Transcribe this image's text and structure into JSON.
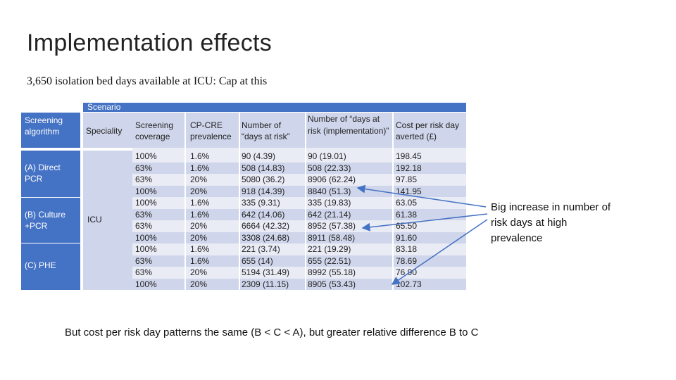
{
  "slide": {
    "title": "Implementation effects",
    "subtitle": "3,650 isolation bed days available at ICU:  Cap at this",
    "note": "Big increase in number of risk days at high prevalence",
    "footer": "But cost per risk day patterns the same (B < C < A), but greater relative difference B to C"
  },
  "table": {
    "scenario_label": "Scenario",
    "headers": {
      "algorithm": "Screening algorithm",
      "speciality": "Speciality",
      "coverage": "Screening coverage",
      "prevalence": "CP-CRE prevalence",
      "risk_days": "Number of “days at risk”",
      "risk_days_impl": "Number of “days at risk (implementation)”",
      "cost": "Cost per risk day averted (£)"
    },
    "groups": [
      "(A) Direct PCR",
      "(B) Culture +PCR",
      "(C) PHE"
    ],
    "speciality_value": "ICU",
    "rows": [
      [
        "100%",
        "1.6%",
        "90 (4.39)",
        "90 (19.01)",
        "198.45"
      ],
      [
        "63%",
        "1.6%",
        "508 (14.83)",
        "508 (22.33)",
        "192.18"
      ],
      [
        "63%",
        "20%",
        "5080 (36.2)",
        "8906 (62.24)",
        "97.85"
      ],
      [
        "100%",
        "20%",
        "918 (14.39)",
        "8840 (51.3)",
        "141.95"
      ],
      [
        "100%",
        "1.6%",
        "335 (9.31)",
        "335 (19.83)",
        "63.05"
      ],
      [
        "63%",
        "1.6%",
        "642 (14.06)",
        "642 (21.14)",
        "61.38"
      ],
      [
        "63%",
        "20%",
        "6664 (42.32)",
        "8952 (57.38)",
        "65.50"
      ],
      [
        "100%",
        "20%",
        "3308 (24.68)",
        "8911 (58.48)",
        "91.60"
      ],
      [
        "100%",
        "1.6%",
        "221 (3.74)",
        "221 (19.29)",
        "83.18"
      ],
      [
        "63%",
        "1.6%",
        "655 (14)",
        "655 (22.51)",
        "78.69"
      ],
      [
        "63%",
        "20%",
        "5194 (31.49)",
        "8992 (55.18)",
        "76.90"
      ],
      [
        "100%",
        "20%",
        "2309 (11.15)",
        "8905 (53.43)",
        "102.73"
      ]
    ]
  },
  "colors": {
    "header_blue": "#4472c4",
    "band_dark": "#cfd5ea",
    "band_light": "#e9ebf5",
    "arrow": "#4472c4"
  }
}
